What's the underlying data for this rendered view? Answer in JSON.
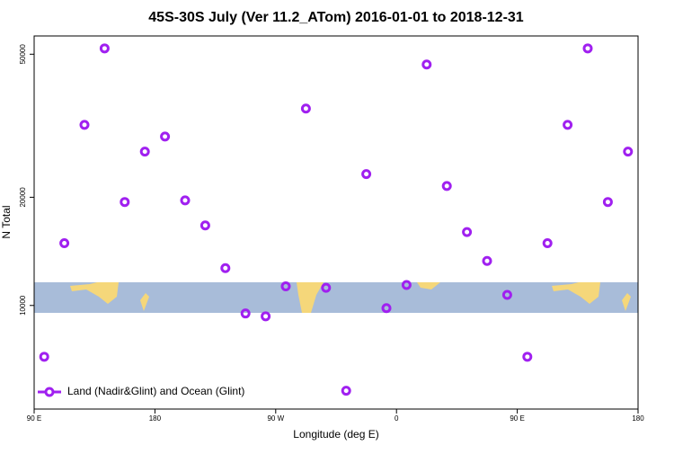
{
  "chart_data": {
    "type": "scatter",
    "title": "45S-30S July (Ver 11.2_ATom)   2016-01-01 to 2018-12-31",
    "xlabel": "Longitude (deg E)",
    "ylabel": "N Total",
    "ylog": true,
    "xlim": [
      90,
      540
    ],
    "ylim": [
      5150,
      56200
    ],
    "xticks": [
      {
        "value": 90,
        "label": "90 E"
      },
      180,
      {
        "value": 270,
        "label": "90 W"
      },
      {
        "value": 360,
        "label": "0"
      },
      {
        "value": 450,
        "label": "90 E"
      },
      {
        "value": 540,
        "label": "180"
      }
    ],
    "yticks": [
      10000,
      20000,
      50000
    ],
    "legend": "lower left",
    "series": [
      {
        "name": "Land (Nadir&Glint) and Ocean (Glint)",
        "color": "#a020f0",
        "x": [
          97.5,
          112.5,
          127.5,
          142.5,
          157.5,
          172.5,
          187.5,
          202.5,
          217.5,
          232.5,
          247.5,
          262.5,
          277.5,
          292.5,
          307.5,
          322.5,
          337.5,
          352.5,
          367.5,
          382.5,
          397.5,
          412.5,
          427.5,
          442.5,
          457.5,
          472.5,
          487.5,
          502.5,
          517.5,
          532.5
        ],
        "values": [
          7200,
          14900,
          31800,
          51900,
          19400,
          26800,
          29500,
          19600,
          16700,
          12700,
          9500,
          9330,
          11300,
          35300,
          11200,
          5790,
          23200,
          9830,
          11400,
          46800,
          21500,
          16000,
          13300,
          10700,
          7200,
          14900,
          31800,
          51900,
          19400,
          26800
        ]
      }
    ]
  }
}
